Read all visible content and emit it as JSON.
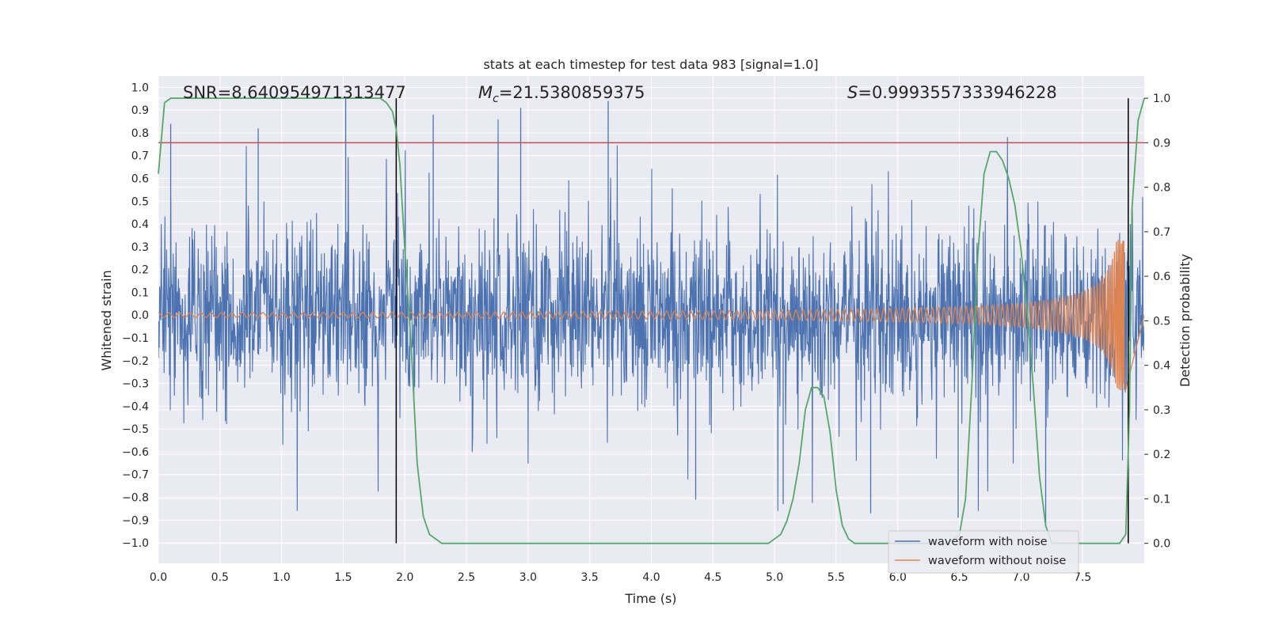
{
  "chart_data": {
    "type": "line",
    "title": "stats at each timestep for test data 983 [signal=1.0]",
    "xlabel": "Time (s)",
    "ylabel": "Whitened strain",
    "y2label": "Detection probability",
    "xlim": [
      0.0,
      8.0
    ],
    "ylim": [
      -1.09,
      1.05
    ],
    "y2lim": [
      -0.045,
      1.05
    ],
    "x_ticks": [
      "0.0",
      "0.5",
      "1.0",
      "1.5",
      "2.0",
      "2.5",
      "3.0",
      "3.5",
      "4.0",
      "4.5",
      "5.0",
      "5.5",
      "6.0",
      "6.5",
      "7.0",
      "7.5"
    ],
    "y_ticks": [
      "1.0",
      "0.9",
      "0.8",
      "0.7",
      "0.6",
      "0.5",
      "0.4",
      "0.3",
      "0.2",
      "0.1",
      "0.0",
      "−0.1",
      "−0.2",
      "−0.3",
      "−0.4",
      "−0.5",
      "−0.6",
      "−0.7",
      "−0.8",
      "−0.9",
      "−1.0"
    ],
    "y2_ticks": [
      "1.0",
      "0.9",
      "0.8",
      "0.7",
      "0.6",
      "0.5",
      "0.4",
      "0.3",
      "0.2",
      "0.1",
      "0.0"
    ],
    "annotations": {
      "snr": "SNR=8.640954971313477",
      "mc_symbol": "M",
      "mc_sub": "c",
      "mc_value": "=21.5380859375",
      "s_symbol": "S",
      "s_value": "=0.9993557333946228"
    },
    "threshold": {
      "value": 0.9,
      "axis": "y2",
      "color": "#c44e52"
    },
    "vertical_lines": [
      1.93,
      7.87
    ],
    "legend": {
      "placement": "lower-right",
      "entries": [
        "waveform with noise",
        "waveform without noise"
      ]
    },
    "series": [
      {
        "name": "waveform with noise",
        "axis": "y",
        "color": "#4c72b0",
        "envelope": 0.5,
        "peaks": [
          0.84,
          0.82,
          0.95,
          0.88,
          0.91,
          0.94,
          -0.81,
          -0.83,
          -0.87,
          -0.89,
          -0.92
        ]
      },
      {
        "name": "waveform without noise",
        "axis": "y",
        "color": "#dd8452",
        "chirp_start_amp": 0.01,
        "chirp_end_amp": 0.33,
        "merger_time": 7.85
      },
      {
        "axis": "y2",
        "color": "#55a868",
        "x": [
          0.0,
          0.05,
          0.1,
          0.15,
          0.2,
          0.4,
          0.6,
          0.8,
          1.0,
          1.2,
          1.4,
          1.6,
          1.8,
          1.85,
          1.9,
          1.93,
          1.96,
          2.0,
          2.05,
          2.1,
          2.15,
          2.2,
          2.25,
          2.3,
          2.4,
          2.6,
          2.8,
          3.0,
          3.2,
          3.4,
          3.5,
          3.6,
          3.8,
          4.0,
          4.2,
          4.4,
          4.6,
          4.8,
          4.95,
          5.0,
          5.05,
          5.1,
          5.15,
          5.2,
          5.25,
          5.3,
          5.35,
          5.4,
          5.45,
          5.5,
          5.55,
          5.6,
          5.65,
          5.7,
          5.75,
          5.8,
          5.9,
          6.0,
          6.2,
          6.4,
          6.5,
          6.55,
          6.6,
          6.65,
          6.7,
          6.75,
          6.8,
          6.85,
          6.9,
          6.95,
          7.0,
          7.05,
          7.1,
          7.15,
          7.2,
          7.25,
          7.3,
          7.35,
          7.4,
          7.5,
          7.6,
          7.7,
          7.8,
          7.85,
          7.88,
          7.9,
          7.95,
          8.0
        ],
        "y": [
          0.83,
          0.99,
          1.0,
          1.0,
          1.0,
          1.0,
          1.0,
          1.0,
          1.0,
          1.0,
          1.0,
          1.0,
          1.0,
          0.99,
          0.97,
          0.93,
          0.85,
          0.66,
          0.45,
          0.18,
          0.06,
          0.02,
          0.01,
          0.0,
          0.0,
          0.0,
          0.0,
          0.0,
          0.0,
          0.0,
          0.0,
          0.0,
          0.0,
          0.0,
          0.0,
          0.0,
          0.0,
          0.0,
          0.0,
          0.01,
          0.02,
          0.05,
          0.1,
          0.18,
          0.3,
          0.35,
          0.35,
          0.33,
          0.25,
          0.12,
          0.04,
          0.01,
          0.0,
          0.0,
          0.0,
          0.0,
          0.0,
          0.0,
          0.0,
          0.0,
          0.02,
          0.1,
          0.35,
          0.65,
          0.83,
          0.88,
          0.88,
          0.86,
          0.82,
          0.76,
          0.66,
          0.52,
          0.35,
          0.15,
          0.04,
          0.0,
          0.0,
          0.0,
          0.0,
          0.0,
          0.0,
          0.0,
          0.0,
          0.02,
          0.3,
          0.75,
          0.95,
          1.0
        ]
      }
    ]
  }
}
